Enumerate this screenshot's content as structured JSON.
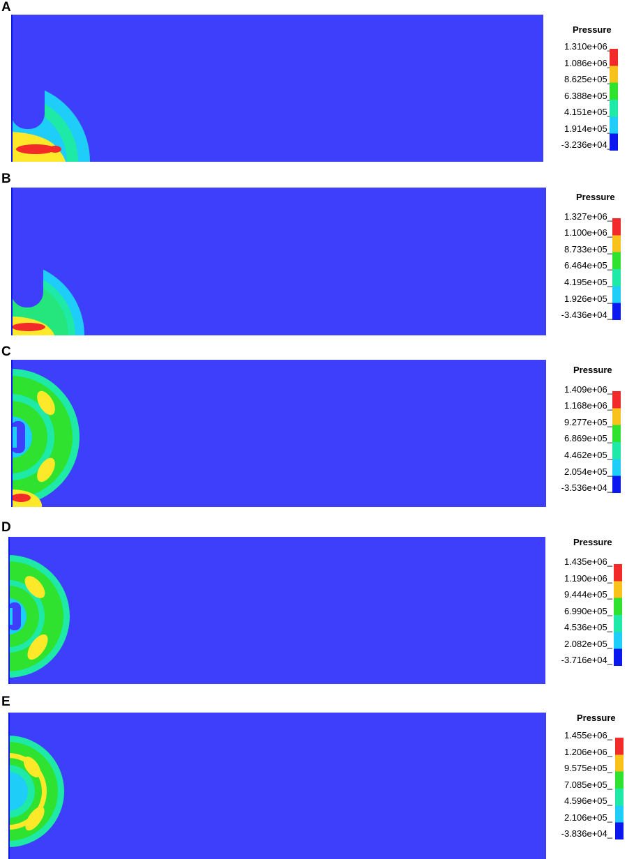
{
  "colors": {
    "background_field": "#3e3ffa",
    "cyan": "#1ecdf8",
    "teal": "#1fe9a6",
    "green": "#2fe22f",
    "yellow": "#fde82a",
    "orange": "#f8c21b",
    "red": "#f22a2a",
    "blue": "#0a17ee"
  },
  "legend_colors": [
    "#f22a2a",
    "#f8c21b",
    "#2fe22f",
    "#1fe9a6",
    "#1ecdf8",
    "#0a17ee"
  ],
  "panels": [
    {
      "letter": "A",
      "legend_title": "Pressure",
      "ticks": [
        "1.310e+06",
        "1.086e+06",
        "8.625e+05",
        "6.388e+05",
        "4.151e+05",
        "1.914e+05",
        "-3.236e+04"
      ]
    },
    {
      "letter": "B",
      "legend_title": "Pressure",
      "ticks": [
        "1.327e+06",
        "1.100e+06",
        "8.733e+05",
        "6.464e+05",
        "4.195e+05",
        "1.926e+05",
        "-3.436e+04"
      ]
    },
    {
      "letter": "C",
      "legend_title": "Pressure",
      "ticks": [
        "1.409e+06",
        "1.168e+06",
        "9.277e+05",
        "6.869e+05",
        "4.462e+05",
        "2.054e+05",
        "-3.536e+04"
      ]
    },
    {
      "letter": "D",
      "legend_title": "Pressure",
      "ticks": [
        "1.435e+06",
        "1.190e+06",
        "9.444e+05",
        "6.990e+05",
        "4.536e+05",
        "2.082e+05",
        "-3.716e+04"
      ]
    },
    {
      "letter": "E",
      "legend_title": "Pressure",
      "ticks": [
        "1.455e+06",
        "1.206e+06",
        "9.575e+05",
        "7.085e+05",
        "4.596e+05",
        "2.106e+05",
        "-3.836e+04"
      ]
    }
  ]
}
